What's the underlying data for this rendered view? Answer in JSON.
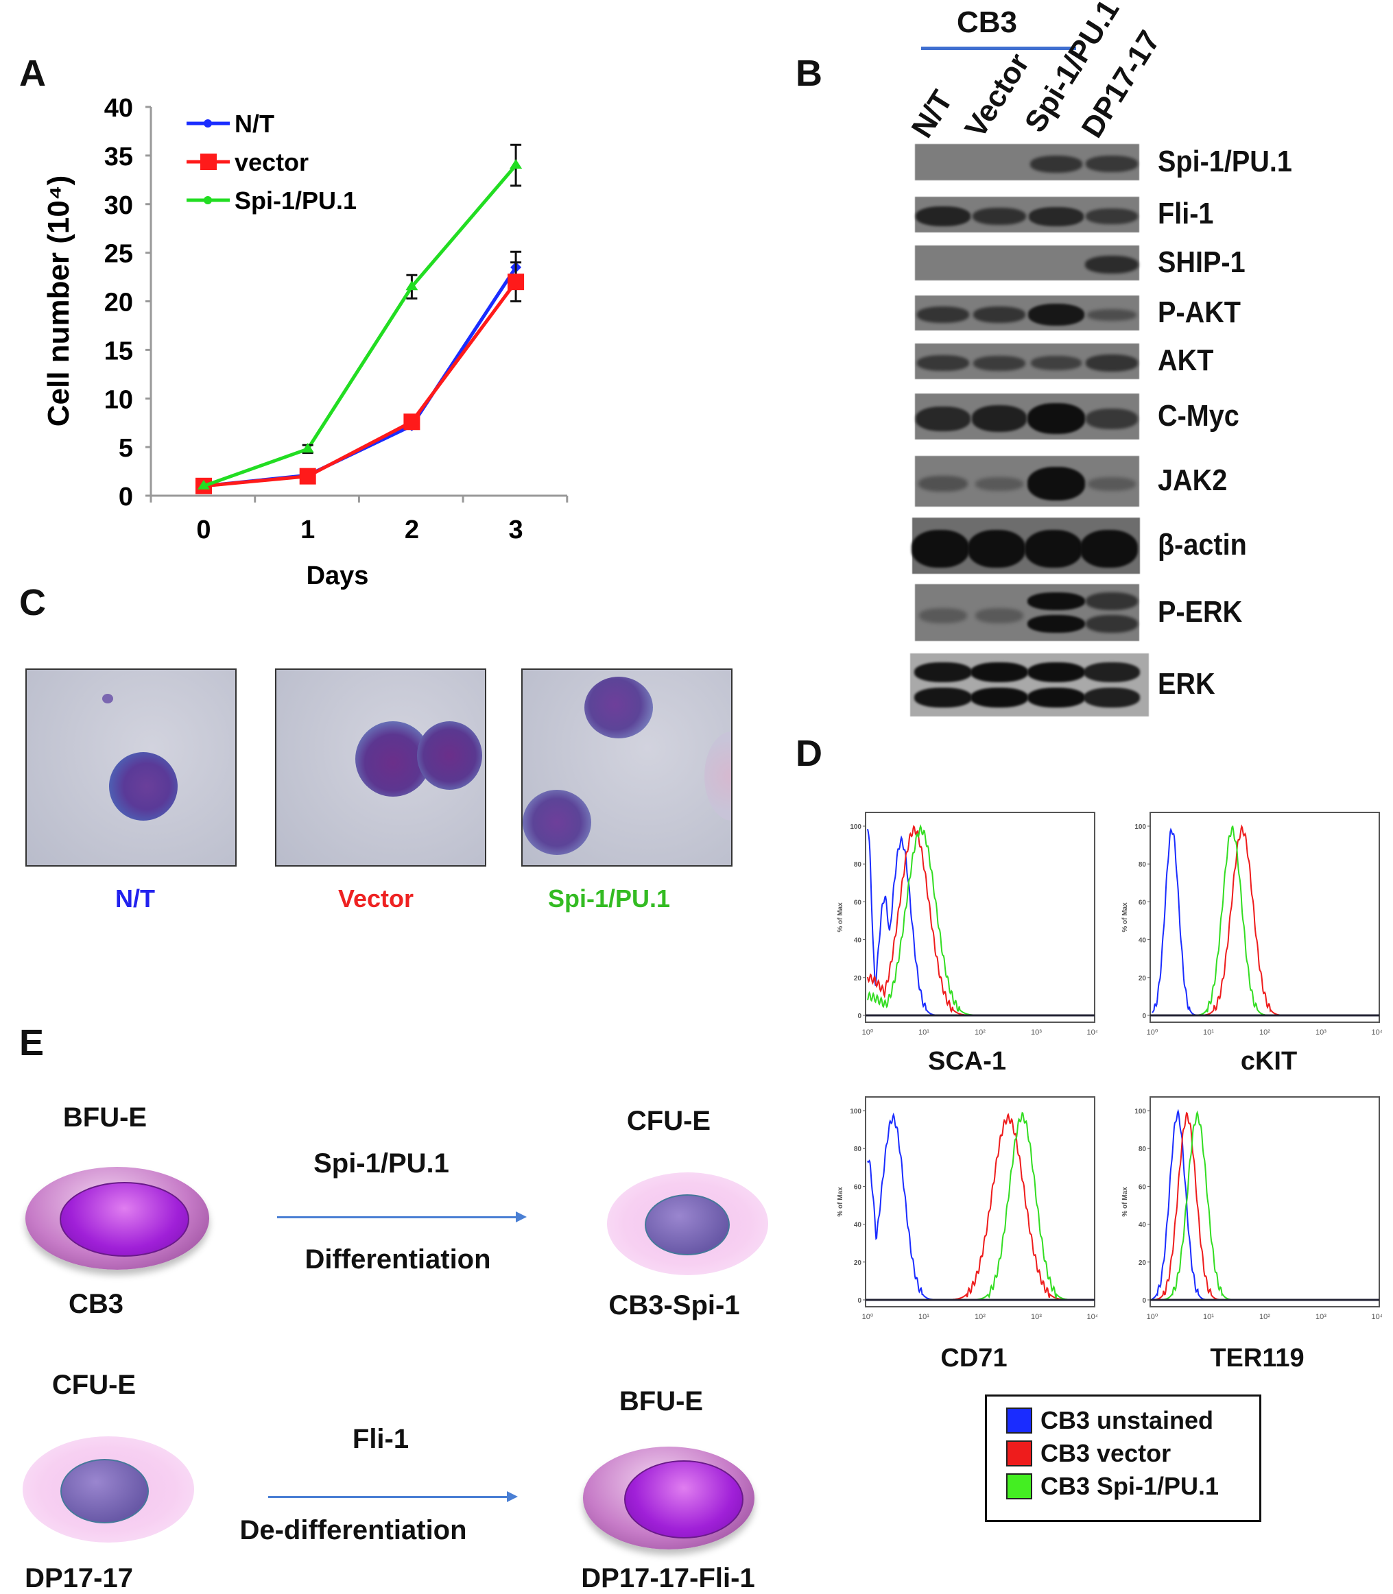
{
  "panels": {
    "a": "A",
    "b": "B",
    "c": "C",
    "d": "D",
    "e": "E"
  },
  "chart_data": {
    "type": "line",
    "title": "",
    "xlabel": "Days",
    "ylabel": "Cell number (10⁴)",
    "x": [
      0,
      1,
      2,
      3
    ],
    "xticks": [
      "0",
      "1",
      "2",
      "3"
    ],
    "yticks": [
      "0",
      "5",
      "10",
      "15",
      "20",
      "25",
      "30",
      "35",
      "40"
    ],
    "ylim": [
      0,
      40
    ],
    "legend_position": "top-left",
    "series": [
      {
        "name": "N/T",
        "color": "#1a2cff",
        "marker": "diamond",
        "values": [
          1,
          2.1,
          7.2,
          23.5
        ],
        "errors": [
          0,
          0,
          0,
          1.6
        ]
      },
      {
        "name": "vector",
        "color": "#ff1a1a",
        "marker": "square",
        "values": [
          1,
          2,
          7.6,
          22
        ],
        "errors": [
          0,
          0,
          0,
          2
        ]
      },
      {
        "name": "Spi-1/PU.1",
        "color": "#22dd22",
        "marker": "triangle",
        "values": [
          1,
          4.8,
          21.5,
          34
        ],
        "errors": [
          0,
          0.4,
          1.2,
          2.1
        ]
      }
    ]
  },
  "western": {
    "group_label": "CB3",
    "lanes": [
      "N/T",
      "Vector",
      "Spi-1/PU.1",
      "DP17-17"
    ],
    "rows": [
      {
        "label": "Spi-1/PU.1",
        "intensity": [
          0,
          0,
          0.55,
          0.5
        ]
      },
      {
        "label": "Fli-1",
        "intensity": [
          0.75,
          0.6,
          0.7,
          0.5
        ]
      },
      {
        "label": "SHIP-1",
        "intensity": [
          0,
          0,
          0,
          0.65
        ]
      },
      {
        "label": "P-AKT",
        "intensity": [
          0.55,
          0.55,
          0.9,
          0.25
        ]
      },
      {
        "label": "AKT",
        "intensity": [
          0.5,
          0.45,
          0.4,
          0.55
        ]
      },
      {
        "label": "C-Myc",
        "intensity": [
          0.7,
          0.8,
          1,
          0.5
        ]
      },
      {
        "label": "JAK2",
        "intensity": [
          0.2,
          0.1,
          1,
          0.1
        ]
      },
      {
        "label": "β-actin",
        "intensity": [
          1,
          1,
          1,
          1
        ]
      },
      {
        "label": "P-ERK",
        "intensity": [
          0.1,
          0.1,
          1,
          0.55
        ]
      },
      {
        "label": "ERK",
        "intensity": [
          0.95,
          1,
          1,
          0.85
        ]
      }
    ]
  },
  "micrographs": [
    {
      "caption": "N/T",
      "color": "#2222ee"
    },
    {
      "caption": "Vector",
      "color": "#ee2222"
    },
    {
      "caption": "Spi-1/PU.1",
      "color": "#33bb22"
    }
  ],
  "flow": {
    "y_axis_label": "% of Max",
    "y_ticks": [
      "0",
      "20",
      "40",
      "60",
      "80",
      "100"
    ],
    "x_ticks": [
      "10⁰",
      "10¹",
      "10²",
      "10³",
      "10⁴"
    ],
    "plots": [
      {
        "marker": "SCA-1",
        "curves": {
          "blue": [
            [
              0,
              0.07,
              100
            ],
            [
              0.3,
              0.1,
              62
            ],
            [
              0.6,
              0.17,
              92
            ]
          ],
          "red": [
            [
              0,
              0.3,
              20
            ],
            [
              0.83,
              0.26,
              98
            ]
          ],
          "green": [
            [
              0,
              0.3,
              10
            ],
            [
              0.95,
              0.26,
              98
            ]
          ]
        }
      },
      {
        "marker": "cKIT",
        "curves": {
          "blue": [
            [
              0.35,
              0.12,
              98
            ]
          ],
          "red": [
            [
              1.6,
              0.19,
              98
            ]
          ],
          "green": [
            [
              1.42,
              0.17,
              98
            ]
          ]
        }
      },
      {
        "marker": "CD71",
        "curves": {
          "blue": [
            [
              0,
              0.12,
              75
            ],
            [
              0.45,
              0.2,
              96
            ]
          ],
          "red": [
            [
              2.5,
              0.28,
              96
            ]
          ],
          "green": [
            [
              2.75,
              0.23,
              97
            ]
          ]
        }
      },
      {
        "marker": "TER119",
        "curves": {
          "blue": [
            [
              0.45,
              0.14,
              98
            ]
          ],
          "red": [
            [
              0.62,
              0.16,
              97
            ]
          ],
          "green": [
            [
              0.8,
              0.17,
              97
            ]
          ]
        }
      }
    ],
    "legend": [
      {
        "label": "CB3 unstained",
        "color": "#1a2cff"
      },
      {
        "label": "CB3 vector",
        "color": "#ee1c1c"
      },
      {
        "label": "CB3 Spi-1/PU.1",
        "color": "#44ee22"
      }
    ]
  },
  "scheme": {
    "row1": {
      "from_stage": "BFU-E",
      "from_cell": "CB3",
      "factor": "Spi-1/PU.1",
      "process": "Differentiation",
      "to_stage": "CFU-E",
      "to_cell": "CB3-Spi-1"
    },
    "row2": {
      "from_stage": "CFU-E",
      "from_cell": "DP17-17",
      "factor": "Fli-1",
      "process": "De-differentiation",
      "to_stage": "BFU-E",
      "to_cell": "DP17-17-Fli-1"
    }
  }
}
